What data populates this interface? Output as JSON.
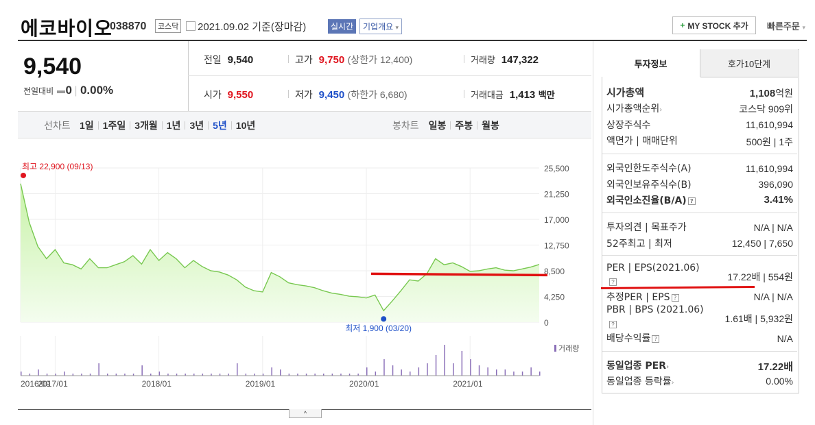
{
  "header": {
    "stock_name": "에코바이오",
    "stock_code": "038870",
    "market_badge": "코스닥",
    "date_text": "2021.09.02 기준(장마감)",
    "realtime_badge": "실시간",
    "overview_badge": "기업개요",
    "mystock_label": "MY STOCK 추가",
    "quick_order_label": "빠른주문"
  },
  "price": {
    "current": "9,540",
    "change_label": "전일대비",
    "change_value": "0",
    "change_pct": "0.00%"
  },
  "stats": {
    "prev_close_label": "전일",
    "prev_close": "9,540",
    "high_label": "고가",
    "high": "9,750",
    "upper_limit": "(상한가 12,400)",
    "volume_label": "거래량",
    "volume": "147,322",
    "open_label": "시가",
    "open": "9,550",
    "low_label": "저가",
    "low": "9,450",
    "lower_limit": "(하한가 6,680)",
    "trade_value_label": "거래대금",
    "trade_value": "1,413",
    "trade_value_unit": "백만"
  },
  "toolbar": {
    "line_chart_label": "선차트",
    "periods": [
      "1일",
      "1주일",
      "3개월",
      "1년",
      "3년",
      "5년",
      "10년"
    ],
    "active_period": "5년",
    "candle_label": "봉차트",
    "candle_periods": [
      "일봉",
      "주봉",
      "월봉"
    ]
  },
  "chart_data": {
    "type": "area",
    "y_ticks": [
      "25,500",
      "21,250",
      "17,000",
      "12,750",
      "8,500",
      "4,250",
      "0"
    ],
    "ylim": [
      0,
      25500
    ],
    "x_ticks": [
      "2016/09",
      "2017/01",
      "2018/01",
      "2019/01",
      "2020/01",
      "2021/01"
    ],
    "max_annotation": "최고 22,900 (09/13)",
    "min_annotation": "최저 1,900 (03/20)",
    "volume_legend": "거래량",
    "series": [
      {
        "x": [
          "2016-09",
          "2016-10",
          "2016-11",
          "2016-12",
          "2017-01",
          "2017-02",
          "2017-03",
          "2017-04",
          "2017-05",
          "2017-06",
          "2017-07",
          "2017-08",
          "2017-09",
          "2017-10",
          "2017-11",
          "2017-12",
          "2018-01",
          "2018-02",
          "2018-03",
          "2018-04",
          "2018-05",
          "2018-06",
          "2018-07",
          "2018-08",
          "2018-09",
          "2018-10",
          "2018-11",
          "2018-12",
          "2019-01",
          "2019-02",
          "2019-03",
          "2019-04",
          "2019-05",
          "2019-06",
          "2019-07",
          "2019-08",
          "2019-09",
          "2019-10",
          "2019-11",
          "2019-12",
          "2020-01",
          "2020-02",
          "2020-03",
          "2020-04",
          "2020-05",
          "2020-06",
          "2020-07",
          "2020-08",
          "2020-09",
          "2020-10",
          "2020-11",
          "2020-12",
          "2021-01",
          "2021-02",
          "2021-03",
          "2021-04",
          "2021-05",
          "2021-06",
          "2021-07",
          "2021-08",
          "2021-09"
        ],
        "values": [
          22900,
          16500,
          12500,
          10500,
          12000,
          9800,
          9500,
          8800,
          10500,
          9000,
          9000,
          9500,
          10000,
          11000,
          9600,
          12000,
          10200,
          11500,
          10500,
          9000,
          10200,
          9200,
          8500,
          8300,
          7800,
          7000,
          5800,
          5200,
          5000,
          8200,
          7500,
          6500,
          6200,
          6000,
          5700,
          5200,
          4800,
          4600,
          4300,
          4200,
          4000,
          4500,
          1900,
          3500,
          5200,
          7000,
          6800,
          8000,
          10500,
          9500,
          9800,
          9200,
          8400,
          8500,
          8800,
          9000,
          8600,
          8500,
          8800,
          9100,
          9540
        ]
      }
    ],
    "volume_values": [
      2,
      1,
      3,
      1,
      1,
      2,
      1,
      1,
      1,
      6,
      1,
      1,
      1,
      1,
      5,
      1,
      2,
      1,
      1,
      1,
      1,
      1,
      1,
      1,
      1,
      6,
      1,
      1,
      1,
      4,
      3,
      1,
      1,
      1,
      1,
      1,
      1,
      1,
      1,
      1,
      4,
      2,
      8,
      5,
      3,
      2,
      4,
      6,
      10,
      15,
      6,
      12,
      8,
      5,
      4,
      3,
      3,
      2,
      2,
      4,
      2
    ]
  },
  "target_line_value": 8000,
  "right_panel": {
    "tab_invest": "투자정보",
    "tab_quote": "호가10단계",
    "rows_group1": [
      {
        "label": "시가총액",
        "value": "1,108",
        "unit": "억원",
        "bold": true
      },
      {
        "label": "시가총액순위",
        "value": "코스닥 909위"
      },
      {
        "label": "상장주식수",
        "value": "11,610,994"
      },
      {
        "label": "액면가 | 매매단위",
        "value": "500원 | 1주"
      }
    ],
    "rows_group2": [
      {
        "label": "외국인한도주식수(A)",
        "value": "11,610,994"
      },
      {
        "label": "외국인보유주식수(B)",
        "value": "396,090"
      },
      {
        "label": "외국인소진율(B/A)",
        "value": "3.41%",
        "bold": true
      }
    ],
    "rows_group3": [
      {
        "label": "투자의견 | 목표주가",
        "value": "N/A | N/A"
      },
      {
        "label": "52주최고 | 최저",
        "value": "12,450 | 7,650"
      }
    ],
    "rows_group4": [
      {
        "label": "PER | EPS(2021.06)",
        "value": "17.22배 | 554원"
      },
      {
        "label": "추정PER | EPS",
        "value": "N/A | N/A"
      },
      {
        "label": "PBR | BPS (2021.06)",
        "value": "1.61배 | 5,932원"
      },
      {
        "label": "배당수익률",
        "value": "N/A"
      }
    ],
    "rows_group5": [
      {
        "label": "동일업종 PER",
        "value": "17.22배",
        "bold": true
      },
      {
        "label": "동일업종 등락률",
        "value": "0.00%"
      }
    ]
  },
  "expand_button": "^"
}
